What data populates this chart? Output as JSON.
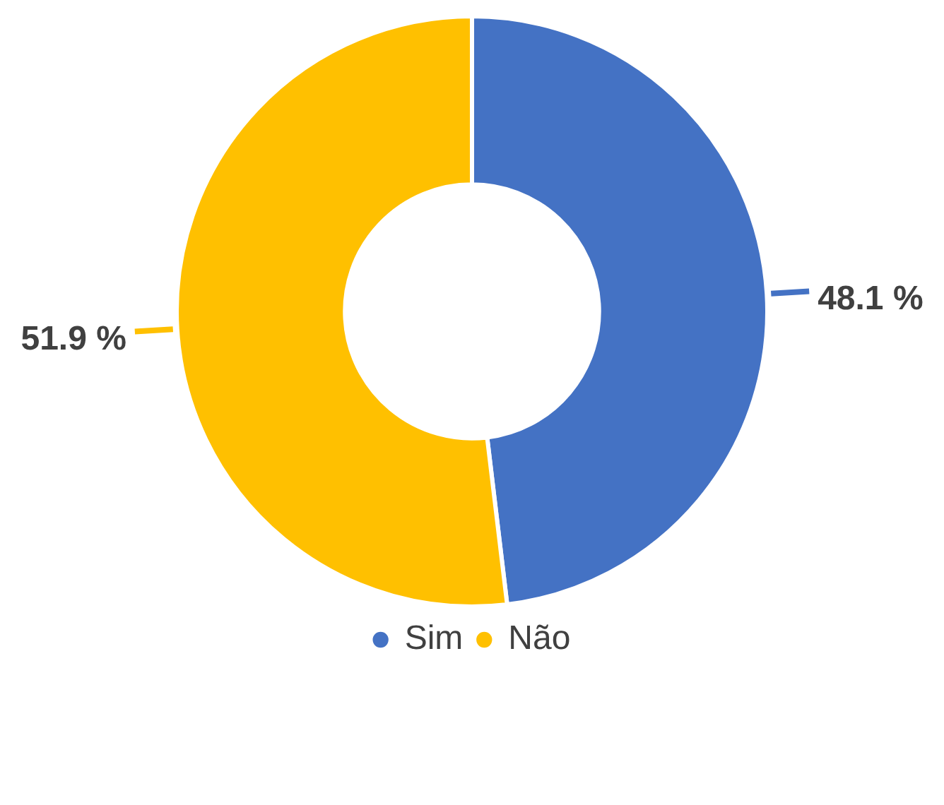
{
  "chart_data": {
    "type": "donut",
    "categories": [
      "Sim",
      "Não"
    ],
    "values": [
      48.1,
      51.9
    ],
    "colors": [
      "#4472c4",
      "#ffc000"
    ],
    "value_labels": [
      "48.1 %",
      "51.9 %"
    ],
    "legend": "bottom"
  }
}
